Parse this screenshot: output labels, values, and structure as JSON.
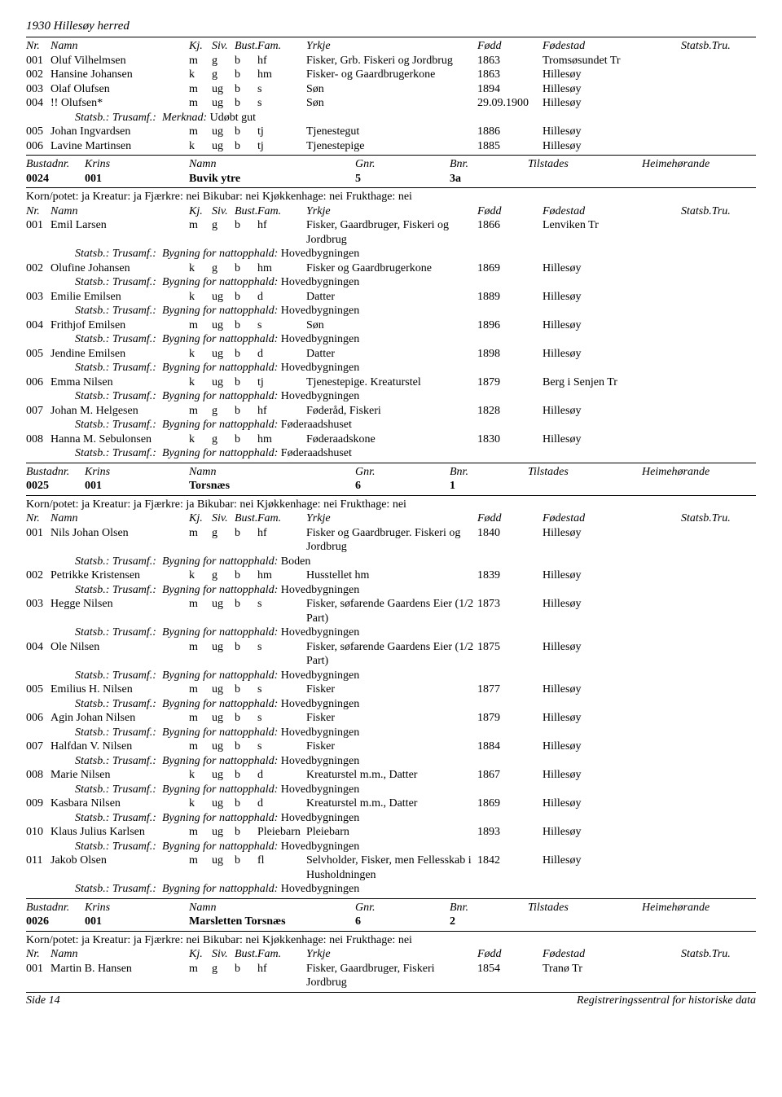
{
  "page_title": "1930 Hillesøy herred",
  "labels": {
    "nr": "Nr.",
    "namn": "Namn",
    "kj": "Kj.",
    "siv": "Siv.",
    "bust": "Bust.",
    "fam": "Fam.",
    "yrkje": "Yrkje",
    "fodd": "Fødd",
    "fodestad": "Fødestad",
    "statsbtru": "Statsb.Tru.",
    "bustadnr": "Bustadnr.",
    "krins": "Krins",
    "gnr": "Gnr.",
    "bnr": "Bnr.",
    "tilstades": "Tilstades",
    "heim": "Heimehørande",
    "statsb_trusamf": "Statsb.:  Trusamf.:",
    "bygning": "Bygning for nattopphald:",
    "merknad": "Merknad:"
  },
  "korn_ja_nei": "Korn/potet: ja Kreatur: ja Fjærkre: nei Bikubar: nei Kjøkkenhage: nei Frukthage: nei",
  "korn_ja_ja": "Korn/potet: ja Kreatur: ja Fjærkre: ja Bikubar: nei Kjøkkenhage: nei Frukthage: nei",
  "footer_left": "Side 14",
  "footer_right": "Registreringssentral for historiske data",
  "group_a": [
    {
      "nr": "001",
      "namn": "Oluf Vilhelmsen",
      "kj": "m",
      "siv": "g",
      "bust": "b",
      "fam": "hf",
      "yrkje": "Fisker, Grb. Fiskeri og Jordbrug",
      "fodd": "1863",
      "fstad": "Tromsøsundet Tr"
    },
    {
      "nr": "002",
      "namn": "Hansine Johansen",
      "kj": "k",
      "siv": "g",
      "bust": "b",
      "fam": "hm",
      "yrkje": "Fisker- og Gaardbrugerkone",
      "fodd": "1863",
      "fstad": "Hillesøy"
    },
    {
      "nr": "003",
      "namn": "Olaf Olufsen",
      "kj": "m",
      "siv": "ug",
      "bust": "b",
      "fam": "s",
      "yrkje": "Søn",
      "fodd": "1894",
      "fstad": "Hillesøy"
    },
    {
      "nr": "004",
      "namn": "!! Olufsen*",
      "kj": "m",
      "siv": "ug",
      "bust": "b",
      "fam": "s",
      "yrkje": "Søn",
      "fodd": "29.09.1900",
      "fstad": "Hillesøy"
    }
  ],
  "group_a_merknad": "Udøbt gut",
  "group_a2": [
    {
      "nr": "005",
      "namn": "Johan Ingvardsen",
      "kj": "m",
      "siv": "ug",
      "bust": "b",
      "fam": "tj",
      "yrkje": "Tjenestegut",
      "fodd": "1886",
      "fstad": "Hillesøy"
    },
    {
      "nr": "006",
      "namn": "Lavine Martinsen",
      "kj": "k",
      "siv": "ug",
      "bust": "b",
      "fam": "tj",
      "yrkje": "Tjenestepige",
      "fodd": "1885",
      "fstad": "Hillesøy"
    }
  ],
  "bustad1": {
    "nr": "0024",
    "krins": "001",
    "namn": "Buvik ytre",
    "gnr": "5",
    "bnr": "3a"
  },
  "group_b": [
    {
      "nr": "001",
      "namn": "Emil Larsen",
      "kj": "m",
      "siv": "g",
      "bust": "b",
      "fam": "hf",
      "yrkje": "Fisker, Gaardbruger, Fiskeri og Jordbrug",
      "fodd": "1866",
      "fstad": "Lenviken Tr",
      "byg": "Hovedbygningen"
    },
    {
      "nr": "002",
      "namn": "Olufine Johansen",
      "kj": "k",
      "siv": "g",
      "bust": "b",
      "fam": "hm",
      "yrkje": "Fisker og Gaardbrugerkone",
      "fodd": "1869",
      "fstad": "Hillesøy",
      "byg": "Hovedbygningen"
    },
    {
      "nr": "003",
      "namn": "Emilie Emilsen",
      "kj": "k",
      "siv": "ug",
      "bust": "b",
      "fam": "d",
      "yrkje": "Datter",
      "fodd": "1889",
      "fstad": "Hillesøy",
      "byg": "Hovedbygningen"
    },
    {
      "nr": "004",
      "namn": "Frithjof Emilsen",
      "kj": "m",
      "siv": "ug",
      "bust": "b",
      "fam": "s",
      "yrkje": "Søn",
      "fodd": "1896",
      "fstad": "Hillesøy",
      "byg": "Hovedbygningen"
    },
    {
      "nr": "005",
      "namn": "Jendine Emilsen",
      "kj": "k",
      "siv": "ug",
      "bust": "b",
      "fam": "d",
      "yrkje": "Datter",
      "fodd": "1898",
      "fstad": "Hillesøy",
      "byg": "Hovedbygningen"
    },
    {
      "nr": "006",
      "namn": "Emma Nilsen",
      "kj": "k",
      "siv": "ug",
      "bust": "b",
      "fam": "tj",
      "yrkje": "Tjenestepige. Kreaturstel",
      "fodd": "1879",
      "fstad": "Berg i Senjen Tr",
      "byg": "Hovedbygningen"
    },
    {
      "nr": "007",
      "namn": "Johan M. Helgesen",
      "kj": "m",
      "siv": "g",
      "bust": "b",
      "fam": "hf",
      "yrkje": "Føderåd, Fiskeri",
      "fodd": "1828",
      "fstad": "Hillesøy",
      "byg": "Føderaadshuset"
    },
    {
      "nr": "008",
      "namn": "Hanna M. Sebulonsen",
      "kj": "k",
      "siv": "g",
      "bust": "b",
      "fam": "hm",
      "yrkje": "Føderaadskone",
      "fodd": "1830",
      "fstad": "Hillesøy",
      "byg": "Føderaadshuset"
    }
  ],
  "bustad2": {
    "nr": "0025",
    "krins": "001",
    "namn": "Torsnæs",
    "gnr": "6",
    "bnr": "1"
  },
  "group_c": [
    {
      "nr": "001",
      "namn": "Nils Johan Olsen",
      "kj": "m",
      "siv": "g",
      "bust": "b",
      "fam": "hf",
      "yrkje": "Fisker og Gaardbruger. Fiskeri og Jordbrug",
      "fodd": "1840",
      "fstad": "Hillesøy",
      "byg": "Boden"
    },
    {
      "nr": "002",
      "namn": "Petrikke Kristensen",
      "kj": "k",
      "siv": "g",
      "bust": "b",
      "fam": "hm",
      "yrkje": "Husstellet hm",
      "fodd": "1839",
      "fstad": "Hillesøy",
      "byg": "Hovedbygningen"
    },
    {
      "nr": "003",
      "namn": "Hegge Nilsen",
      "kj": "m",
      "siv": "ug",
      "bust": "b",
      "fam": "s",
      "yrkje": "Fisker, søfarende Gaardens Eier (1/2 Part)",
      "fodd": "1873",
      "fstad": "Hillesøy",
      "byg": "Hovedbygningen"
    },
    {
      "nr": "004",
      "namn": "Ole Nilsen",
      "kj": "m",
      "siv": "ug",
      "bust": "b",
      "fam": "s",
      "yrkje": "Fisker, søfarende Gaardens Eier (1/2 Part)",
      "fodd": "1875",
      "fstad": "Hillesøy",
      "byg": "Hovedbygningen"
    },
    {
      "nr": "005",
      "namn": "Emilius H. Nilsen",
      "kj": "m",
      "siv": "ug",
      "bust": "b",
      "fam": "s",
      "yrkje": "Fisker",
      "fodd": "1877",
      "fstad": "Hillesøy",
      "byg": "Hovedbygningen"
    },
    {
      "nr": "006",
      "namn": "Agin Johan Nilsen",
      "kj": "m",
      "siv": "ug",
      "bust": "b",
      "fam": "s",
      "yrkje": "Fisker",
      "fodd": "1879",
      "fstad": "Hillesøy",
      "byg": "Hovedbygningen"
    },
    {
      "nr": "007",
      "namn": "Halfdan V. Nilsen",
      "kj": "m",
      "siv": "ug",
      "bust": "b",
      "fam": "s",
      "yrkje": "Fisker",
      "fodd": "1884",
      "fstad": "Hillesøy",
      "byg": "Hovedbygningen"
    },
    {
      "nr": "008",
      "namn": "Marie Nilsen",
      "kj": "k",
      "siv": "ug",
      "bust": "b",
      "fam": "d",
      "yrkje": "Kreaturstel m.m., Datter",
      "fodd": "1867",
      "fstad": "Hillesøy",
      "byg": "Hovedbygningen"
    },
    {
      "nr": "009",
      "namn": "Kasbara Nilsen",
      "kj": "k",
      "siv": "ug",
      "bust": "b",
      "fam": "d",
      "yrkje": "Kreaturstel m.m., Datter",
      "fodd": "1869",
      "fstad": "Hillesøy",
      "byg": "Hovedbygningen"
    },
    {
      "nr": "010",
      "namn": "Klaus Julius Karlsen",
      "kj": "m",
      "siv": "ug",
      "bust": "b",
      "fam": "Pleiebarn",
      "yrkje": "Pleiebarn",
      "fodd": "1893",
      "fstad": "Hillesøy",
      "byg": "Hovedbygningen"
    },
    {
      "nr": "011",
      "namn": "Jakob Olsen",
      "kj": "m",
      "siv": "ug",
      "bust": "b",
      "fam": "fl",
      "yrkje": "Selvholder, Fisker, men Fellesskab i Husholdningen",
      "fodd": "1842",
      "fstad": "Hillesøy",
      "byg": "Hovedbygningen"
    }
  ],
  "bustad3": {
    "nr": "0026",
    "krins": "001",
    "namn": "Marsletten Torsnæs",
    "gnr": "6",
    "bnr": "2"
  },
  "group_d": [
    {
      "nr": "001",
      "namn": "Martin B. Hansen",
      "kj": "m",
      "siv": "g",
      "bust": "b",
      "fam": "hf",
      "yrkje": "Fisker, Gaardbruger, Fiskeri Jordbrug",
      "fodd": "1854",
      "fstad": "Tranø Tr"
    }
  ]
}
